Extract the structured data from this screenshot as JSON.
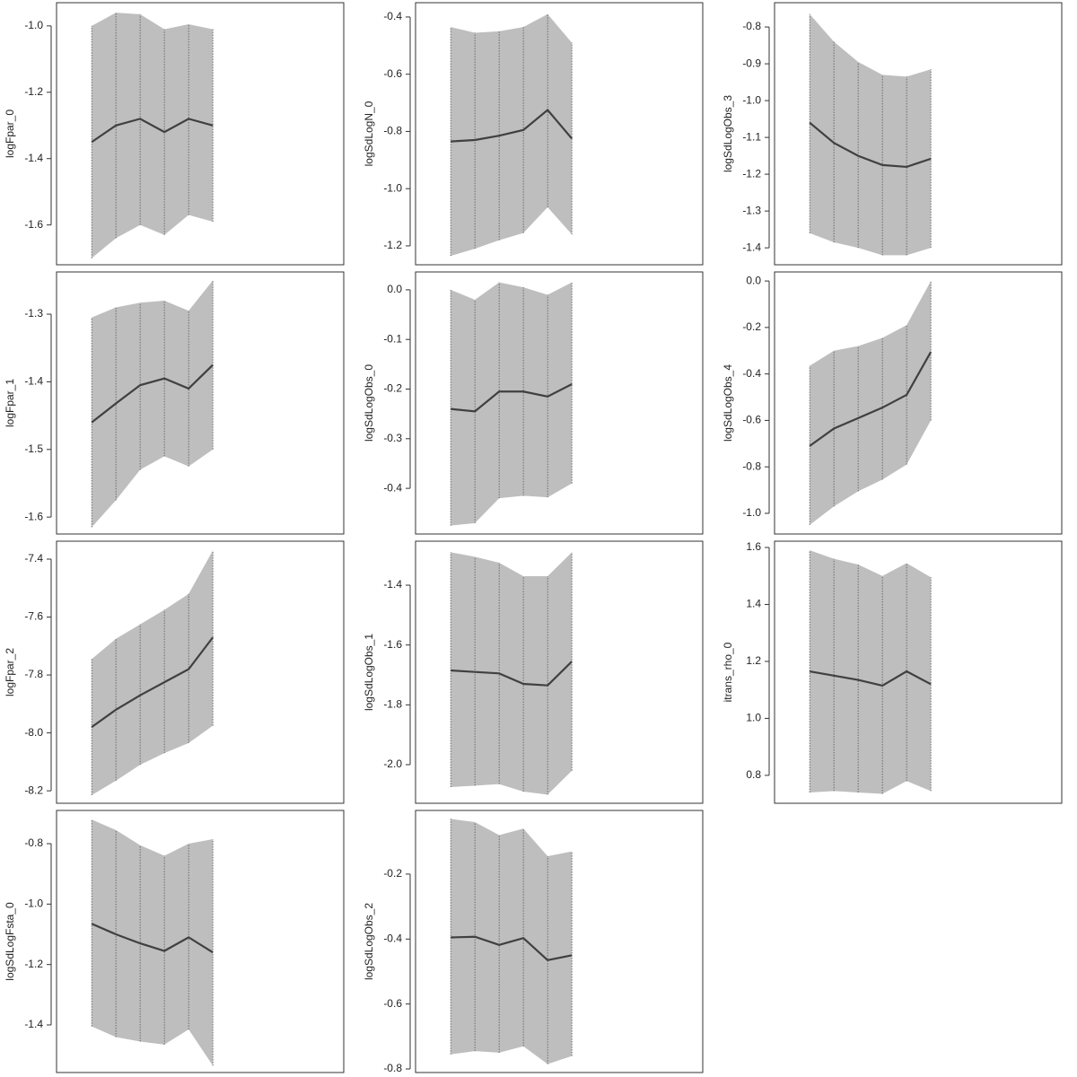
{
  "chart_data": [
    {
      "type": "line",
      "ylabel": "logFpar_0",
      "x": [
        1,
        2,
        3,
        4,
        5,
        6
      ],
      "xlim": [
        -0.45,
        11.4
      ],
      "values": [
        -1.35,
        -1.3,
        -1.28,
        -1.32,
        -1.28,
        -1.3
      ],
      "lower": [
        -1.7,
        -1.64,
        -1.6,
        -1.63,
        -1.57,
        -1.59
      ],
      "upper": [
        -1.0,
        -0.96,
        -0.965,
        -1.01,
        -0.995,
        -1.01
      ],
      "ylim": [
        -1.72,
        -0.93
      ],
      "yticks": [
        {
          "value": -1.0,
          "label": "-1.0"
        },
        -1.2,
        -1.4,
        -1.6
      ],
      "color": "#404040",
      "band_color": "#bebebe"
    },
    {
      "type": "line",
      "ylabel": "logFpar_1",
      "x": [
        1,
        2,
        3,
        4,
        5,
        6
      ],
      "xlim": [
        -0.45,
        11.4
      ],
      "values": [
        -1.46,
        -1.432,
        -1.405,
        -1.395,
        -1.41,
        -1.375
      ],
      "lower": [
        -1.615,
        -1.575,
        -1.53,
        -1.51,
        -1.525,
        -1.5
      ],
      "upper": [
        -1.305,
        -1.29,
        -1.283,
        -1.28,
        -1.295,
        -1.25
      ],
      "ylim": [
        -1.625,
        -1.2376
      ],
      "yticks": [
        -1.3,
        -1.4,
        -1.5,
        -1.6
      ],
      "color": "#404040",
      "band_color": "#bebebe"
    },
    {
      "type": "line",
      "ylabel": "logFpar_2",
      "x": [
        1,
        2,
        3,
        4,
        5,
        6
      ],
      "xlim": [
        -0.45,
        11.4
      ],
      "values": [
        -7.98,
        -7.92,
        -7.87,
        -7.825,
        -7.78,
        -7.67
      ],
      "lower": [
        -8.215,
        -8.165,
        -8.11,
        -8.07,
        -8.035,
        -7.975
      ],
      "upper": [
        -7.745,
        -7.675,
        -7.625,
        -7.575,
        -7.52,
        -7.37
      ],
      "ylim": [
        -8.243,
        -7.338
      ],
      "yticks": [
        -7.4,
        -7.6,
        -7.8,
        {
          "value": -8.0,
          "label": "-8.0"
        },
        -8.2
      ],
      "color": "#404040",
      "band_color": "#bebebe"
    },
    {
      "type": "line",
      "ylabel": "logSdLogFsta_0",
      "x": [
        1,
        2,
        3,
        4,
        5,
        6
      ],
      "xlim": [
        -0.45,
        11.4
      ],
      "values": [
        -1.065,
        -1.1,
        -1.13,
        -1.155,
        -1.11,
        -1.16
      ],
      "lower": [
        -1.405,
        -1.44,
        -1.455,
        -1.465,
        -1.415,
        -1.535
      ],
      "upper": [
        -0.72,
        -0.755,
        -0.805,
        -0.84,
        -0.8,
        -0.785
      ],
      "ylim": [
        -1.5575,
        -0.69
      ],
      "yticks": [
        -0.8,
        {
          "value": -1.0,
          "label": "-1.0"
        },
        -1.2,
        -1.4
      ],
      "color": "#404040",
      "band_color": "#bebebe"
    },
    {
      "type": "line",
      "ylabel": "logSdLogN_0",
      "x": [
        1,
        2,
        3,
        4,
        5,
        6
      ],
      "xlim": [
        -0.45,
        11.4
      ],
      "values": [
        -0.835,
        -0.83,
        -0.815,
        -0.795,
        -0.725,
        -0.825
      ],
      "lower": [
        -1.235,
        -1.21,
        -1.18,
        -1.155,
        -1.065,
        -1.16
      ],
      "upper": [
        -0.435,
        -0.455,
        -0.45,
        -0.435,
        -0.39,
        -0.49
      ],
      "ylim": [
        -1.266,
        -0.35
      ],
      "yticks": [
        -0.4,
        -0.6,
        -0.8,
        {
          "value": -1.0,
          "label": "-1.0"
        },
        -1.2
      ],
      "color": "#404040",
      "band_color": "#bebebe"
    },
    {
      "type": "line",
      "ylabel": "logSdLogObs_0",
      "x": [
        1,
        2,
        3,
        4,
        5,
        6
      ],
      "xlim": [
        -0.45,
        11.4
      ],
      "values": [
        -0.24,
        -0.245,
        -0.205,
        -0.205,
        -0.215,
        -0.19
      ],
      "lower": [
        -0.475,
        -0.47,
        -0.42,
        -0.415,
        -0.418,
        -0.39
      ],
      "upper": [
        0.0,
        -0.02,
        0.015,
        0.005,
        -0.01,
        0.015
      ],
      "ylim": [
        -0.492,
        0.036
      ],
      "yticks": [
        {
          "value": 0,
          "label": "0.0"
        },
        -0.1,
        -0.2,
        -0.3,
        -0.4
      ],
      "color": "#404040",
      "band_color": "#bebebe"
    },
    {
      "type": "line",
      "ylabel": "logSdLogObs_1",
      "x": [
        1,
        2,
        3,
        4,
        5,
        6
      ],
      "xlim": [
        -0.45,
        11.4
      ],
      "values": [
        -1.685,
        -1.69,
        -1.695,
        -1.73,
        -1.735,
        -1.655
      ],
      "lower": [
        -2.075,
        -2.07,
        -2.065,
        -2.09,
        -2.1,
        -2.02
      ],
      "upper": [
        -1.29,
        -1.305,
        -1.325,
        -1.37,
        -1.37,
        -1.29
      ],
      "ylim": [
        -2.129,
        -1.253
      ],
      "yticks": [
        -1.4,
        -1.6,
        -1.8,
        {
          "value": -2.0,
          "label": "-2.0"
        }
      ],
      "color": "#404040",
      "band_color": "#bebebe"
    },
    {
      "type": "line",
      "ylabel": "logSdLogObs_2",
      "x": [
        1,
        2,
        3,
        4,
        5,
        6
      ],
      "xlim": [
        -0.45,
        11.4
      ],
      "values": [
        -0.395,
        -0.393,
        -0.418,
        -0.397,
        -0.465,
        -0.45
      ],
      "lower": [
        -0.755,
        -0.745,
        -0.75,
        -0.73,
        -0.785,
        -0.76
      ],
      "upper": [
        -0.03,
        -0.04,
        -0.08,
        -0.06,
        -0.145,
        -0.13
      ],
      "ylim": [
        -0.811,
        -0.004
      ],
      "yticks": [
        -0.2,
        -0.4,
        -0.6,
        -0.8
      ],
      "color": "#404040",
      "band_color": "#bebebe"
    },
    {
      "type": "line",
      "ylabel": "logSdLogObs_3",
      "x": [
        1,
        2,
        3,
        4,
        5,
        6
      ],
      "xlim": [
        -0.45,
        11.4
      ],
      "values": [
        -1.06,
        -1.115,
        -1.15,
        -1.175,
        -1.18,
        -1.158
      ],
      "lower": [
        -1.36,
        -1.385,
        -1.4,
        -1.42,
        -1.42,
        -1.4
      ],
      "upper": [
        -0.765,
        -0.84,
        -0.895,
        -0.93,
        -0.935,
        -0.915
      ],
      "ylim": [
        -1.446,
        -0.734
      ],
      "yticks": [
        -0.8,
        -0.9,
        {
          "value": -1.0,
          "label": "-1.0"
        },
        -1.1,
        -1.2,
        -1.3,
        -1.4
      ],
      "color": "#404040",
      "band_color": "#bebebe"
    },
    {
      "type": "line",
      "ylabel": "logSdLogObs_4",
      "x": [
        1,
        2,
        3,
        4,
        5,
        6
      ],
      "xlim": [
        -0.45,
        11.4
      ],
      "values": [
        -0.71,
        -0.635,
        -0.59,
        -0.545,
        -0.49,
        -0.305
      ],
      "lower": [
        -1.05,
        -0.97,
        -0.905,
        -0.855,
        -0.79,
        -0.6
      ],
      "upper": [
        -0.365,
        -0.3,
        -0.28,
        -0.245,
        -0.19,
        0.0
      ],
      "ylim": [
        -1.089,
        0.039
      ],
      "yticks": [
        {
          "value": 0,
          "label": "0.0"
        },
        -0.2,
        -0.4,
        -0.6,
        -0.8,
        {
          "value": -1.0,
          "label": "-1.0"
        }
      ],
      "color": "#404040",
      "band_color": "#bebebe"
    },
    {
      "type": "line",
      "ylabel": "itrans_rho_0",
      "x": [
        1,
        2,
        3,
        4,
        5,
        6
      ],
      "xlim": [
        -0.45,
        11.4
      ],
      "values": [
        1.165,
        1.15,
        1.135,
        1.115,
        1.165,
        1.12
      ],
      "lower": [
        0.74,
        0.745,
        0.74,
        0.735,
        0.78,
        0.745
      ],
      "upper": [
        1.59,
        1.56,
        1.54,
        1.5,
        1.545,
        1.495
      ],
      "ylim": [
        0.702,
        1.622
      ],
      "yticks": [
        1.6,
        1.4,
        1.2,
        {
          "value": 1.0,
          "label": "1.0"
        },
        0.8
      ],
      "color": "#404040",
      "band_color": "#bebebe"
    }
  ]
}
